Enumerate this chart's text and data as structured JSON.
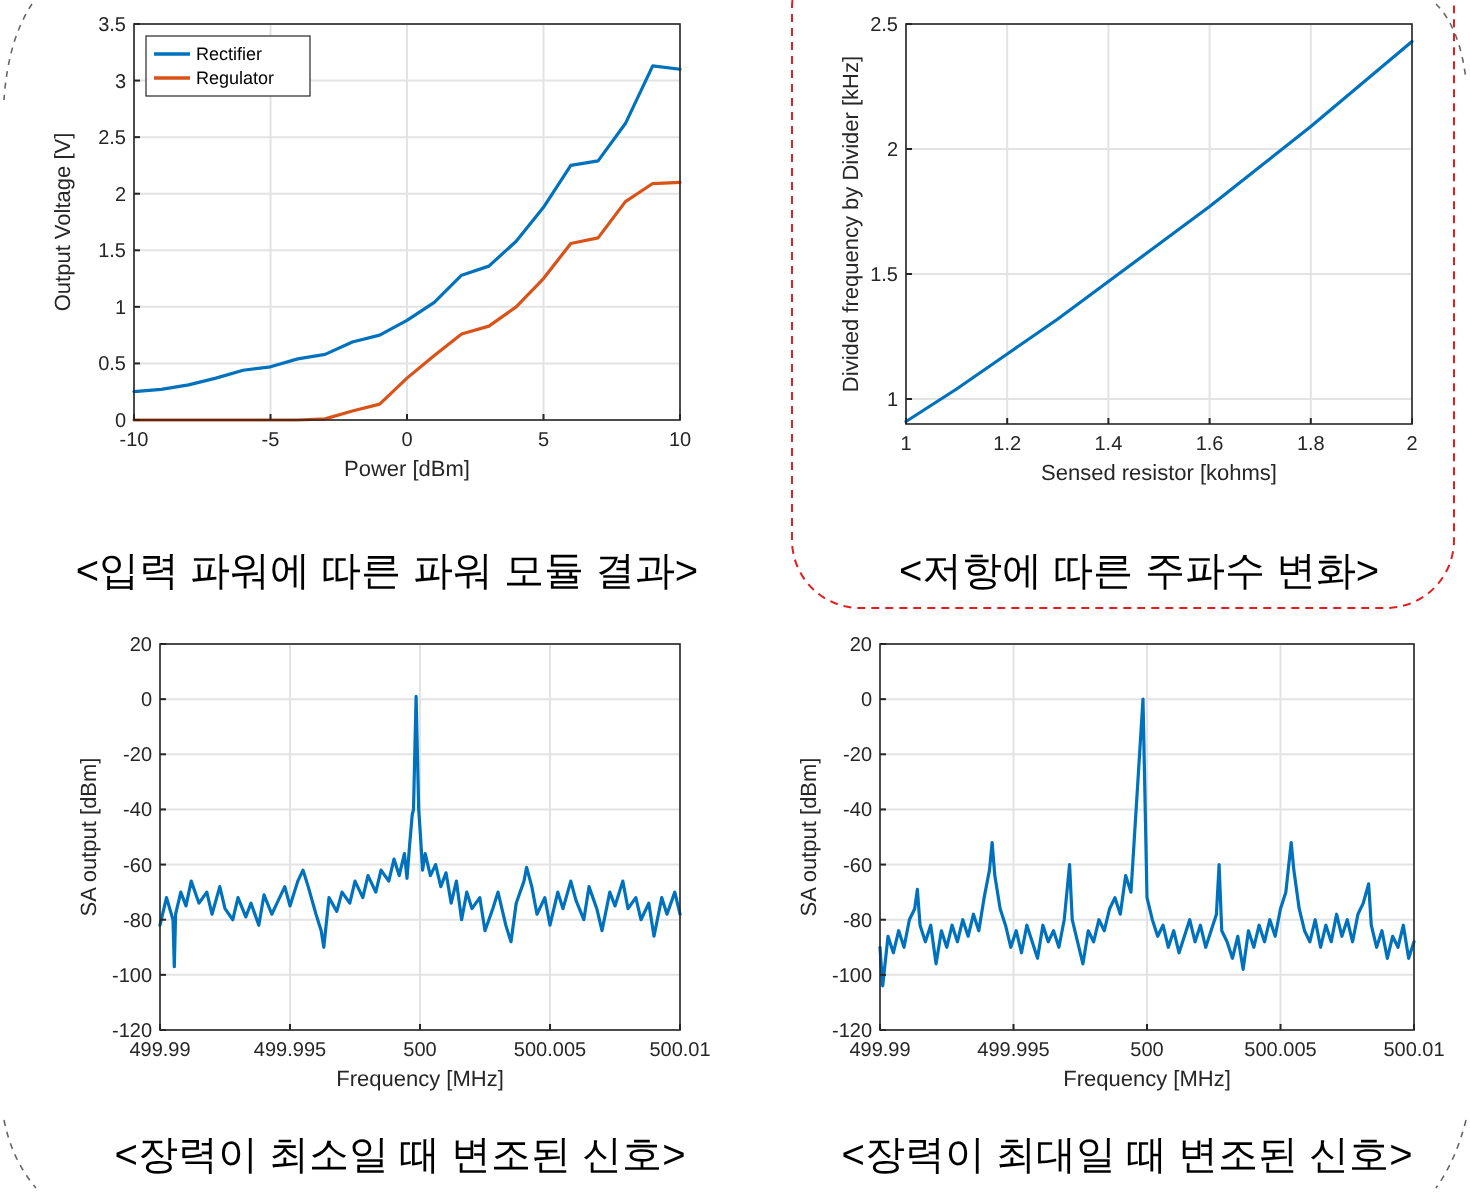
{
  "chart_data": [
    {
      "type": "line",
      "title": "<입력 파워에 따른 파워 모듈 결과>",
      "xlabel": "Power  [dBm]",
      "ylabel": "Output Voltage  [V]",
      "x": [
        -10,
        -9,
        -8,
        -7,
        -6,
        -5,
        -4,
        -3,
        -2,
        -1,
        0,
        1,
        2,
        3,
        4,
        5,
        6,
        7,
        8,
        9,
        10
      ],
      "series": [
        {
          "name": "Rectifier",
          "color": "#0072bd",
          "values": [
            0.25,
            0.27,
            0.31,
            0.37,
            0.44,
            0.47,
            0.54,
            0.58,
            0.69,
            0.75,
            0.88,
            1.04,
            1.28,
            1.36,
            1.58,
            1.88,
            2.25,
            2.29,
            2.62,
            3.13,
            3.1
          ]
        },
        {
          "name": "Regulator",
          "color": "#d95319",
          "values": [
            0,
            0,
            0,
            0,
            0,
            0,
            0,
            0.01,
            0.08,
            0.14,
            0.37,
            0.57,
            0.76,
            0.83,
            1.0,
            1.25,
            1.56,
            1.61,
            1.93,
            2.09,
            2.1
          ]
        }
      ],
      "xlim": [
        -10,
        10
      ],
      "xticks": [
        -10,
        -5,
        0,
        5,
        10
      ],
      "ylim": [
        0,
        3.5
      ],
      "yticks": [
        0,
        0.5,
        1,
        1.5,
        2,
        2.5,
        3,
        3.5
      ],
      "grid": true,
      "legend": "top left"
    },
    {
      "type": "line",
      "title": "<저항에 따른 주파수 변화>",
      "xlabel": "Sensed resistor  [kohms]",
      "ylabel": "Divided frequency by Divider [kHz]",
      "x": [
        1,
        1.1,
        1.2,
        1.3,
        1.4,
        1.5,
        1.6,
        1.7,
        1.8,
        1.9,
        2
      ],
      "series": [
        {
          "color": "#0072bd",
          "values": [
            0.91,
            1.04,
            1.18,
            1.32,
            1.47,
            1.62,
            1.77,
            1.93,
            2.09,
            2.26,
            2.43
          ]
        }
      ],
      "xlim": [
        1,
        2
      ],
      "xticks": [
        1,
        1.2,
        1.4,
        1.6,
        1.8,
        2
      ],
      "ylim": [
        0.9,
        2.5
      ],
      "yticks": [
        1,
        1.5,
        2,
        2.5
      ],
      "grid": true
    },
    {
      "type": "line",
      "title": "<장력이 최소일 때 변조된 신호>",
      "xlabel": "Frequency  [MHz]",
      "ylabel": "SA output  [dBm]",
      "x": [
        499.99,
        499.99025,
        499.9905,
        499.99055,
        499.9906,
        499.9908,
        499.991,
        499.9912,
        499.9915,
        499.9918,
        499.992,
        499.9923,
        499.9925,
        499.9928,
        499.993,
        499.9933,
        499.9935,
        499.9938,
        499.994,
        499.9943,
        499.9945,
        499.9948,
        499.995,
        499.9953,
        499.9955,
        499.9957,
        499.996,
        499.9962,
        499.9963,
        499.9965,
        499.9968,
        499.997,
        499.9973,
        499.9975,
        499.9978,
        499.998,
        499.9983,
        499.9985,
        499.9988,
        499.999,
        499.9992,
        499.9994,
        499.9995,
        499.9996,
        499.9997,
        499.99975,
        499.99985,
        499.99995,
        500,
        500.0001,
        500.0002,
        500.0004,
        500.0006,
        500.0008,
        500.001,
        500.0012,
        500.0014,
        500.0016,
        500.0018,
        500.002,
        500.0023,
        500.0025,
        500.0028,
        500.003,
        500.0033,
        500.0035,
        500.0037,
        500.004,
        500.0041,
        500.0043,
        500.0045,
        500.0048,
        500.005,
        500.0053,
        500.0055,
        500.0058,
        500.006,
        500.0063,
        500.0065,
        500.0068,
        500.007,
        500.0073,
        500.0075,
        500.0078,
        500.008,
        500.0083,
        500.0085,
        500.0088,
        500.009,
        500.0093,
        500.0095,
        500.0098,
        500.01
      ],
      "series": [
        {
          "color": "#0072bd",
          "values": [
            -82,
            -72,
            -80,
            -97,
            -78,
            -70,
            -75,
            -66,
            -74,
            -70,
            -78,
            -68,
            -76,
            -80,
            -72,
            -79,
            -74,
            -82,
            -71,
            -78,
            -74,
            -68,
            -75,
            -66,
            -62,
            -68,
            -78,
            -84,
            -90,
            -72,
            -77,
            -70,
            -74,
            -66,
            -72,
            -64,
            -70,
            -62,
            -66,
            -58,
            -64,
            -56,
            -65,
            -53,
            -42,
            -40,
            1,
            -40,
            -47,
            -62,
            -56,
            -64,
            -60,
            -68,
            -63,
            -74,
            -66,
            -80,
            -70,
            -76,
            -72,
            -84,
            -76,
            -70,
            -82,
            -88,
            -74,
            -66,
            -61,
            -68,
            -78,
            -72,
            -82,
            -70,
            -76,
            -66,
            -73,
            -80,
            -68,
            -76,
            -84,
            -70,
            -75,
            -66,
            -76,
            -72,
            -80,
            -74,
            -86,
            -72,
            -78,
            -70,
            -78
          ]
        }
      ],
      "xlim": [
        499.99,
        500.01
      ],
      "xticks": [
        499.99,
        499.995,
        500,
        500.005,
        500.01
      ],
      "ylim": [
        -120,
        20
      ],
      "yticks": [
        -120,
        -100,
        -80,
        -60,
        -40,
        -20,
        0,
        20
      ],
      "grid": true
    },
    {
      "type": "line",
      "title": "<장력이 최대일 때 변조된 신호>",
      "xlabel": "Frequency  [MHz]",
      "ylabel": "SA output  [dBm]",
      "x": [
        499.99,
        499.9901,
        499.9903,
        499.9905,
        499.9907,
        499.9909,
        499.9911,
        499.9913,
        499.9914,
        499.9915,
        499.9917,
        499.9919,
        499.9921,
        499.9923,
        499.9925,
        499.9927,
        499.9929,
        499.9931,
        499.9933,
        499.9935,
        499.9937,
        499.9939,
        499.9941,
        499.9942,
        499.9943,
        499.9945,
        499.9947,
        499.9949,
        499.9951,
        499.9953,
        499.9955,
        499.9957,
        499.9959,
        499.9961,
        499.9963,
        499.9965,
        499.9967,
        499.9969,
        499.9971,
        499.9972,
        499.9974,
        499.9976,
        499.9978,
        499.998,
        499.9982,
        499.9984,
        499.9986,
        499.9988,
        499.999,
        499.9992,
        499.9994,
        499.99985,
        500,
        500.0002,
        500.0004,
        500.0006,
        500.0008,
        500.001,
        500.0012,
        500.0014,
        500.0016,
        500.0018,
        500.002,
        500.0022,
        500.0024,
        500.0026,
        500.0027,
        500.0028,
        500.003,
        500.0032,
        500.0034,
        500.0036,
        500.0038,
        500.004,
        500.0042,
        500.0044,
        500.0046,
        500.0048,
        500.005,
        500.0052,
        500.0054,
        500.0055,
        500.0057,
        500.0059,
        500.0061,
        500.0063,
        500.0065,
        500.0067,
        500.0069,
        500.0071,
        500.0073,
        500.0075,
        500.0077,
        500.0079,
        500.0081,
        500.0083,
        500.0084,
        500.0086,
        500.0088,
        500.009,
        500.0092,
        500.0094,
        500.0096,
        500.0098,
        500.01
      ],
      "series": [
        {
          "color": "#0072bd",
          "values": [
            -90,
            -104,
            -86,
            -92,
            -84,
            -90,
            -80,
            -76,
            -69,
            -82,
            -88,
            -82,
            -96,
            -84,
            -90,
            -82,
            -88,
            -80,
            -86,
            -78,
            -84,
            -72,
            -62,
            -52,
            -64,
            -76,
            -82,
            -90,
            -84,
            -92,
            -82,
            -88,
            -94,
            -82,
            -88,
            -84,
            -90,
            -80,
            -60,
            -80,
            -88,
            -96,
            -84,
            -88,
            -80,
            -84,
            -76,
            -72,
            -78,
            -64,
            -70,
            0,
            -72,
            -80,
            -86,
            -82,
            -90,
            -84,
            -92,
            -86,
            -80,
            -88,
            -82,
            -90,
            -84,
            -78,
            -60,
            -84,
            -88,
            -94,
            -86,
            -98,
            -84,
            -90,
            -82,
            -88,
            -80,
            -86,
            -76,
            -70,
            -52,
            -62,
            -76,
            -84,
            -88,
            -80,
            -90,
            -82,
            -88,
            -78,
            -86,
            -80,
            -88,
            -78,
            -74,
            -67,
            -82,
            -90,
            -84,
            -94,
            -86,
            -90,
            -82,
            -94,
            -88
          ]
        }
      ],
      "xlim": [
        499.99,
        500.01
      ],
      "xticks": [
        499.99,
        499.995,
        500,
        500.005,
        500.01
      ],
      "ylim": [
        -120,
        20
      ],
      "yticks": [
        -120,
        -100,
        -80,
        -60,
        -40,
        -20,
        0,
        20
      ],
      "grid": true
    }
  ]
}
